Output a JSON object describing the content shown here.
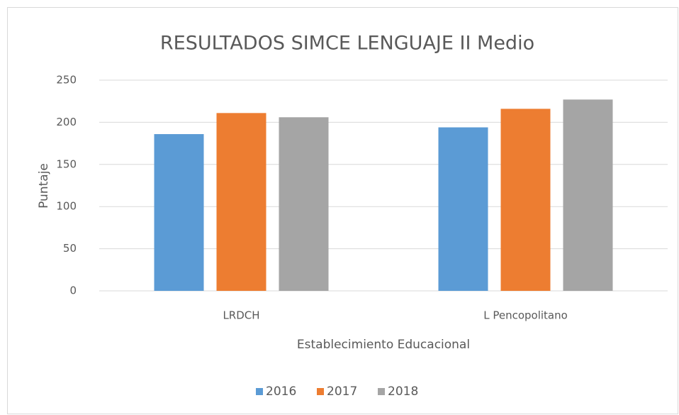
{
  "chart_data": {
    "type": "bar",
    "title": "RESULTADOS SIMCE LENGUAJE II Medio",
    "x_label": "Establecimiento Educacional",
    "y_label": "Puntaje",
    "categories": [
      "LRDCH",
      "L Pencopolitano"
    ],
    "series": [
      {
        "name": "2016",
        "color": "#5b9bd5",
        "values": [
          186,
          194
        ]
      },
      {
        "name": "2017",
        "color": "#ed7d31",
        "values": [
          211,
          216
        ]
      },
      {
        "name": "2018",
        "color": "#a5a5a5",
        "values": [
          206,
          227
        ]
      }
    ],
    "ylim": [
      0,
      250
    ],
    "yticks": [
      0,
      50,
      100,
      150,
      200,
      250
    ],
    "grid": true,
    "legend": "bottom"
  }
}
